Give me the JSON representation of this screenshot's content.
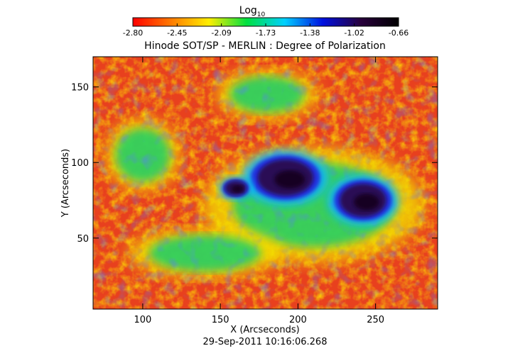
{
  "colorbar": {
    "label": "Log",
    "label_subscript": "10",
    "ticks": [
      "-2.80",
      "-2.45",
      "-2.09",
      "-1.73",
      "-1.38",
      "-1.02",
      "-0.66"
    ],
    "colors": [
      "#ff0000",
      "#ff7a00",
      "#ffee00",
      "#00e040",
      "#00d0ff",
      "#0010e0",
      "#28003c",
      "#000000"
    ]
  },
  "title": "Hinode SOT/SP - MERLIN : Degree of Polarization",
  "x_axis": {
    "label": "X (Arcseconds)",
    "range": [
      68,
      290
    ],
    "ticks": [
      100,
      150,
      200,
      250
    ]
  },
  "y_axis": {
    "label": "Y (Arcseconds)",
    "range": [
      3,
      170
    ],
    "ticks": [
      50,
      100,
      150
    ]
  },
  "timestamp": "29-Sep-2011 10:16:06.268",
  "map": {
    "background_color": "#e8401e",
    "features": [
      {
        "type": "umbra",
        "cx": 192,
        "cy": 90,
        "rx": 18,
        "ry": 12
      },
      {
        "type": "umbra",
        "cx": 242,
        "cy": 75,
        "rx": 15,
        "ry": 11
      },
      {
        "type": "umbra",
        "cx": 160,
        "cy": 83,
        "rx": 7,
        "ry": 5
      },
      {
        "type": "plage",
        "cx": 210,
        "cy": 72,
        "rx": 65,
        "ry": 35
      },
      {
        "type": "plage",
        "cx": 100,
        "cy": 105,
        "rx": 22,
        "ry": 22
      },
      {
        "type": "plage",
        "cx": 140,
        "cy": 40,
        "rx": 45,
        "ry": 15
      },
      {
        "type": "plage",
        "cx": 180,
        "cy": 145,
        "rx": 30,
        "ry": 15
      }
    ]
  }
}
